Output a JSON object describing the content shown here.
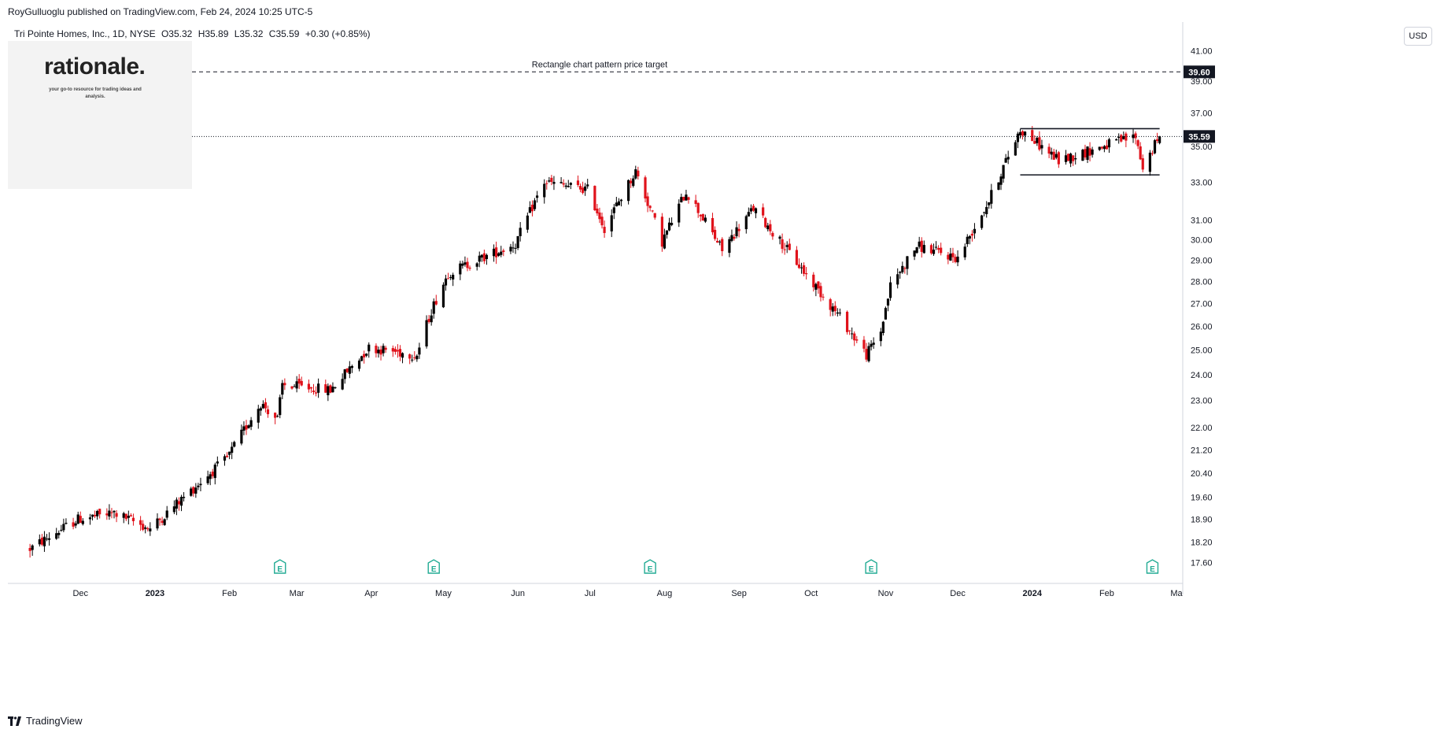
{
  "header": {
    "publisher": "RoyGulluoglu published on TradingView.com, Feb 24, 2024 10:25 UTC-5"
  },
  "legend": {
    "symbol": "Tri Pointe Homes, Inc., 1D, NYSE",
    "open": "O35.32",
    "high": "H35.89",
    "low": "L35.32",
    "close": "C35.59",
    "change": "+0.30 (+0.85%)"
  },
  "logo": {
    "name": "rationale.",
    "tagline": "your go-to resource for trading ideas and analysis."
  },
  "currency": "USD",
  "footer": {
    "brand": "TradingView"
  },
  "colors": {
    "up": "#000000",
    "down": "#e0121b",
    "axis_text": "#131722",
    "grid": "#ffffff"
  },
  "chart_data": {
    "type": "candlestick",
    "y_scale": "log",
    "ylim": [
      17.0,
      43.0
    ],
    "y_ticks": [
      "41.00",
      "39.00",
      "37.00",
      "35.00",
      "33.00",
      "31.00",
      "30.00",
      "29.00",
      "28.00",
      "27.00",
      "26.00",
      "25.00",
      "24.00",
      "23.00",
      "22.00",
      "21.20",
      "20.40",
      "19.60",
      "18.90",
      "18.20",
      "17.60"
    ],
    "x_labels": [
      "Dec",
      "2023",
      "Feb",
      "Mar",
      "Apr",
      "May",
      "Jun",
      "Jul",
      "Aug",
      "Sep",
      "Oct",
      "Nov",
      "Dec",
      "2024",
      "Feb",
      "Ma"
    ],
    "annotations": {
      "target_line": {
        "value": 39.6,
        "label": "Rectangle chart pattern price target",
        "price_tag": "39.60"
      },
      "last_price": {
        "value": 35.59,
        "price_tag": "35.59"
      },
      "rectangle": {
        "top": 36.05,
        "bottom": 33.4,
        "start": "2023-12-27",
        "end": "2024-02-23"
      }
    },
    "earnings_markers": [
      "2023-02-22",
      "2023-04-27",
      "2023-07-26",
      "2023-10-26",
      "2024-02-20"
    ],
    "key_points": [
      {
        "date": "2022-11-10",
        "close": 18.0
      },
      {
        "date": "2022-11-30",
        "close": 18.9
      },
      {
        "date": "2022-12-15",
        "close": 19.1
      },
      {
        "date": "2022-12-30",
        "close": 18.6
      },
      {
        "date": "2023-01-31",
        "close": 20.9
      },
      {
        "date": "2023-02-14",
        "close": 22.9
      },
      {
        "date": "2023-02-21",
        "close": 22.3
      },
      {
        "date": "2023-02-23",
        "close": 23.6
      },
      {
        "date": "2023-03-15",
        "close": 23.4
      },
      {
        "date": "2023-03-31",
        "close": 25.1
      },
      {
        "date": "2023-04-20",
        "close": 24.8
      },
      {
        "date": "2023-04-26",
        "close": 26.7
      },
      {
        "date": "2023-05-03",
        "close": 28.4
      },
      {
        "date": "2023-05-31",
        "close": 29.8
      },
      {
        "date": "2023-06-12",
        "close": 33.0
      },
      {
        "date": "2023-06-30",
        "close": 32.6
      },
      {
        "date": "2023-07-07",
        "close": 30.6
      },
      {
        "date": "2023-07-20",
        "close": 33.6
      },
      {
        "date": "2023-07-31",
        "close": 29.9
      },
      {
        "date": "2023-08-10",
        "close": 32.5
      },
      {
        "date": "2023-08-25",
        "close": 29.5
      },
      {
        "date": "2023-09-07",
        "close": 31.6
      },
      {
        "date": "2023-09-29",
        "close": 28.3
      },
      {
        "date": "2023-10-13",
        "close": 26.4
      },
      {
        "date": "2023-10-24",
        "close": 24.8
      },
      {
        "date": "2023-10-30",
        "close": 25.8
      },
      {
        "date": "2023-11-03",
        "close": 27.8
      },
      {
        "date": "2023-11-14",
        "close": 29.7
      },
      {
        "date": "2023-12-01",
        "close": 29.1
      },
      {
        "date": "2023-12-14",
        "close": 32.0
      },
      {
        "date": "2023-12-27",
        "close": 36.0
      },
      {
        "date": "2024-01-12",
        "close": 34.2
      },
      {
        "date": "2024-02-13",
        "close": 35.6
      },
      {
        "date": "2024-02-16",
        "close": 33.8
      },
      {
        "date": "2024-02-23",
        "close": 35.59
      }
    ]
  }
}
